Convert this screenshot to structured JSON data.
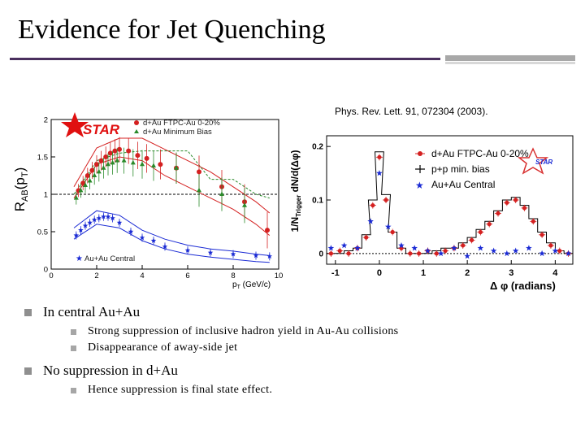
{
  "slide": {
    "title": "Evidence for Jet Quenching",
    "citation": "Phys. Rev. Lett. 91, 072304 (2003)."
  },
  "bullets": [
    {
      "text": "In central Au+Au",
      "sub": [
        "Strong suppression of inclusive hadron yield in Au-Au collisions",
        "Disappearance of away-side jet"
      ]
    },
    {
      "text": "No suppression in  d+Au",
      "sub": [
        "Hence suppression is final state effect."
      ]
    }
  ],
  "colors": {
    "title_rule": "#4a2f5e",
    "dau_central": "#d42020",
    "dau_minbias": "#2a8a2a",
    "auau": "#1a2ad4",
    "star_logo": "#e01010"
  },
  "chart_data": [
    {
      "type": "scatter",
      "title": "",
      "logo_text": "STAR",
      "ylabel_base": "R",
      "ylabel_sub1": "AB",
      "ylabel_arg": "(p",
      "ylabel_sub2": "T",
      "ylabel_end": ")",
      "xlabel_base": "p",
      "xlabel_sub": "T",
      "xlabel_rest": " (GeV/c)",
      "xlim": [
        0,
        10
      ],
      "ylim": [
        0,
        2
      ],
      "x_ticks": [
        "0",
        "2",
        "4",
        "6",
        "8",
        "10"
      ],
      "y_ticks": [
        "0",
        "0.5",
        "1",
        "1.5",
        "2"
      ],
      "reference_line": 1,
      "legend": [
        "d+Au FTPC-Au 0-20%",
        "d+Au Minimum Bias",
        "Au+Au Central"
      ],
      "series": [
        {
          "name": "d+Au FTPC-Au 0-20%",
          "marker": "circle",
          "x": [
            1.2,
            1.4,
            1.6,
            1.8,
            2.0,
            2.2,
            2.4,
            2.6,
            2.8,
            3.0,
            3.4,
            3.8,
            4.2,
            4.8,
            5.5,
            6.5,
            7.5,
            8.5,
            9.5
          ],
          "y": [
            1.05,
            1.15,
            1.25,
            1.32,
            1.4,
            1.45,
            1.5,
            1.55,
            1.58,
            1.6,
            1.58,
            1.52,
            1.48,
            1.4,
            1.35,
            1.3,
            1.1,
            0.9,
            0.52
          ]
        },
        {
          "name": "d+Au Minimum Bias",
          "marker": "triangle",
          "x": [
            1.1,
            1.3,
            1.5,
            1.7,
            1.9,
            2.1,
            2.3,
            2.5,
            2.7,
            2.9,
            3.2,
            3.6,
            4.0,
            4.5,
            5.5,
            6.5,
            7.5,
            8.5
          ],
          "y": [
            0.95,
            1.05,
            1.12,
            1.18,
            1.25,
            1.3,
            1.35,
            1.4,
            1.42,
            1.45,
            1.45,
            1.42,
            1.4,
            1.38,
            1.35,
            1.05,
            1.0,
            0.85
          ]
        },
        {
          "name": "Au+Au Central",
          "marker": "star",
          "x": [
            1.1,
            1.3,
            1.5,
            1.7,
            1.9,
            2.1,
            2.3,
            2.5,
            2.7,
            3.0,
            3.5,
            4.0,
            4.5,
            5.0,
            6.0,
            7.0,
            8.0,
            9.0,
            9.6
          ],
          "y": [
            0.45,
            0.52,
            0.58,
            0.62,
            0.66,
            0.68,
            0.7,
            0.7,
            0.68,
            0.62,
            0.5,
            0.42,
            0.38,
            0.3,
            0.25,
            0.22,
            0.2,
            0.18,
            0.17
          ]
        }
      ],
      "bands": [
        {
          "name": "d+Au central band upper",
          "x": [
            1,
            2,
            3,
            4,
            5,
            6,
            7,
            8,
            9,
            9.6
          ],
          "y": [
            1.1,
            1.62,
            1.75,
            1.75,
            1.6,
            1.45,
            1.3,
            1.1,
            0.9,
            0.75
          ]
        },
        {
          "name": "d+Au central band lower",
          "x": [
            1,
            2,
            3,
            4,
            5,
            6,
            7,
            8,
            9,
            9.6
          ],
          "y": [
            0.95,
            1.4,
            1.5,
            1.45,
            1.25,
            1.1,
            0.95,
            0.8,
            0.6,
            0.45
          ]
        },
        {
          "name": "d+Au min bias band upper",
          "x": [
            1,
            2,
            3,
            4,
            5,
            6,
            7,
            8,
            9,
            9.6
          ],
          "y": [
            1.0,
            1.45,
            1.55,
            1.58,
            1.58,
            1.58,
            1.2,
            1.2,
            1.0,
            0.95
          ]
        },
        {
          "name": "Au+Au band upper",
          "x": [
            1,
            2,
            3,
            4,
            5,
            6,
            7,
            8,
            9,
            9.6
          ],
          "y": [
            0.55,
            0.78,
            0.72,
            0.52,
            0.4,
            0.32,
            0.27,
            0.24,
            0.2,
            0.18
          ]
        },
        {
          "name": "Au+Au band lower",
          "x": [
            1,
            2,
            3,
            4,
            5,
            6,
            7,
            8,
            9,
            9.6
          ],
          "y": [
            0.4,
            0.6,
            0.55,
            0.38,
            0.27,
            0.2,
            0.16,
            0.13,
            0.1,
            0.09
          ]
        }
      ]
    },
    {
      "type": "scatter",
      "title": "",
      "logo_text": "STAR",
      "ylabel": "1/N",
      "ylabel_sub": "Trigger",
      "ylabel_rest": " dN/d(Δφ)",
      "xlabel": "Δ φ  (radians)",
      "xlim": [
        -1.2,
        4.4
      ],
      "ylim": [
        -0.02,
        0.22
      ],
      "x_ticks": [
        "-1",
        "0",
        "1",
        "2",
        "3",
        "4"
      ],
      "y_ticks": [
        "0",
        "0.1",
        "0.2"
      ],
      "legend": [
        "d+Au FTPC-Au 0-20%",
        "p+p min. bias",
        "Au+Au Central"
      ],
      "series": [
        {
          "name": "d+Au FTPC-Au 0-20%",
          "marker": "circle",
          "x": [
            -1.1,
            -0.9,
            -0.7,
            -0.5,
            -0.3,
            -0.15,
            0.0,
            0.15,
            0.3,
            0.5,
            0.7,
            0.9,
            1.1,
            1.3,
            1.5,
            1.7,
            1.9,
            2.1,
            2.3,
            2.5,
            2.7,
            2.9,
            3.1,
            3.3,
            3.5,
            3.7,
            3.9,
            4.1,
            4.3
          ],
          "y": [
            0.0,
            0.005,
            0.0,
            0.01,
            0.03,
            0.09,
            0.18,
            0.1,
            0.04,
            0.01,
            0.0,
            0.0,
            0.005,
            0.0,
            0.005,
            0.01,
            0.015,
            0.025,
            0.04,
            0.055,
            0.075,
            0.095,
            0.1,
            0.085,
            0.06,
            0.035,
            0.015,
            0.005,
            0.0
          ]
        },
        {
          "name": "p+p min. bias",
          "marker": "line",
          "x": [
            -1.1,
            -0.9,
            -0.7,
            -0.5,
            -0.3,
            -0.15,
            0.0,
            0.15,
            0.3,
            0.5,
            0.7,
            0.9,
            1.1,
            1.3,
            1.5,
            1.7,
            1.9,
            2.1,
            2.3,
            2.5,
            2.7,
            2.9,
            3.1,
            3.3,
            3.5,
            3.7,
            3.9,
            4.1,
            4.3
          ],
          "y": [
            0.0,
            0.0,
            0.005,
            0.01,
            0.035,
            0.1,
            0.19,
            0.11,
            0.04,
            0.01,
            0.0,
            0.0,
            0.0,
            0.005,
            0.01,
            0.01,
            0.02,
            0.03,
            0.045,
            0.06,
            0.08,
            0.1,
            0.105,
            0.09,
            0.065,
            0.04,
            0.02,
            0.005,
            0.0
          ]
        },
        {
          "name": "Au+Au Central",
          "marker": "star",
          "x": [
            -1.1,
            -0.8,
            -0.5,
            -0.2,
            0.0,
            0.2,
            0.5,
            0.8,
            1.1,
            1.4,
            1.7,
            2.0,
            2.3,
            2.6,
            2.9,
            3.1,
            3.4,
            3.7,
            4.0,
            4.3
          ],
          "y": [
            0.01,
            0.015,
            0.01,
            0.06,
            0.15,
            0.05,
            0.015,
            0.01,
            0.005,
            0.0,
            0.01,
            -0.005,
            0.01,
            0.005,
            0.0,
            0.005,
            0.01,
            0.0,
            0.005,
            0.0
          ]
        }
      ]
    }
  ]
}
